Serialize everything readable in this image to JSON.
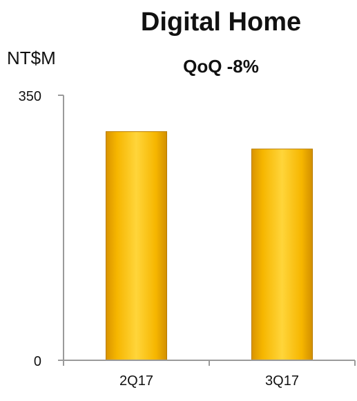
{
  "chart_data": {
    "type": "bar",
    "title": "Digital Home",
    "subtitle": "QoQ -8%",
    "ylabel": "NT$M",
    "xlabel": "",
    "categories": [
      "2Q17",
      "3Q17"
    ],
    "values": [
      302,
      279
    ],
    "ylim": [
      0,
      350
    ],
    "y_ticks": [
      "0",
      "350"
    ],
    "grid": false,
    "legend": "none",
    "colors": {
      "bar_light": "#ffd43a",
      "bar_mid": "#f7b800",
      "bar_dark": "#cf8a00",
      "bar_edge": "#b87b00",
      "axis": "#9a9a9a"
    }
  }
}
